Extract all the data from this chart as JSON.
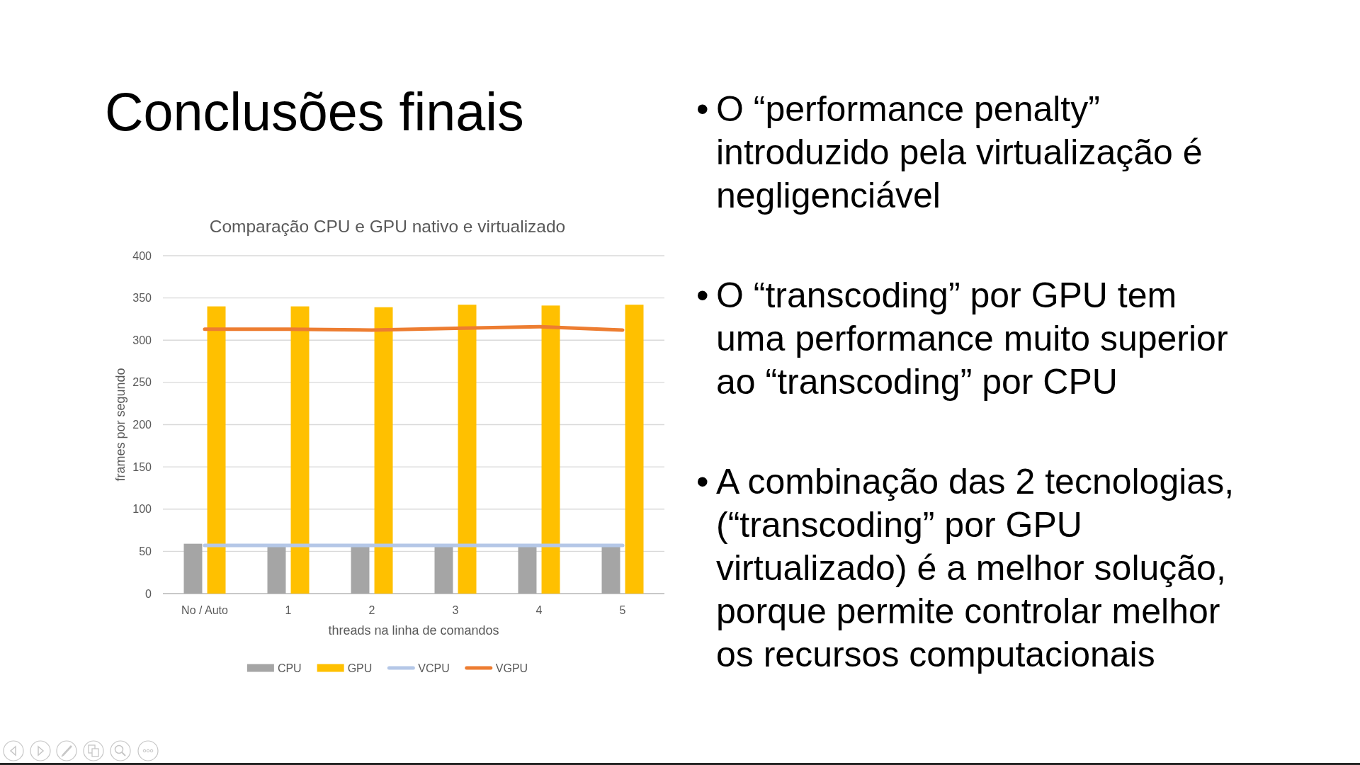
{
  "chart_data": {
    "type": "bar",
    "title": "Conclusões finais",
    "subtitle": "Comparação CPU e GPU nativo e virtualizado",
    "xlabel": "threads na linha de comandos",
    "ylabel": "frames por segundo",
    "categories": [
      "No / Auto",
      "1",
      "2",
      "3",
      "4",
      "5"
    ],
    "series": [
      {
        "name": "CPU",
        "color": "#a5a5a5",
        "values": [
          59,
          56,
          56,
          56,
          56,
          56
        ]
      },
      {
        "name": "GPU",
        "color": "#ffc000",
        "values": [
          340,
          340,
          339,
          342,
          341,
          342
        ]
      },
      {
        "name": "VCPU",
        "type": "line",
        "color": "#b4c7e7",
        "values": [
          57,
          57,
          57,
          57,
          57,
          57
        ]
      },
      {
        "name": "VGPU",
        "type": "line",
        "color": "#ed7d31",
        "values": [
          313,
          313,
          312,
          314,
          316,
          312
        ]
      }
    ],
    "ylim": [
      0,
      400
    ],
    "yticks": [
      0,
      50,
      100,
      150,
      200,
      250,
      300,
      350,
      400
    ],
    "grid": "y",
    "legend": "bottom",
    "annotations": [
      "• O “performance penalty”\nintroduzido pela virtualização é\nnegligenciável",
      "• O “transcoding” por GPU tem\numa performance muito superior\nao “transcoding” por CPU",
      "• A combinação das 2 tecnologias,\n(“transcoding” por GPU\nvirtualizado) é a melhor solução,\nporque permite controlar melhor\nos recursos computacionais"
    ]
  }
}
